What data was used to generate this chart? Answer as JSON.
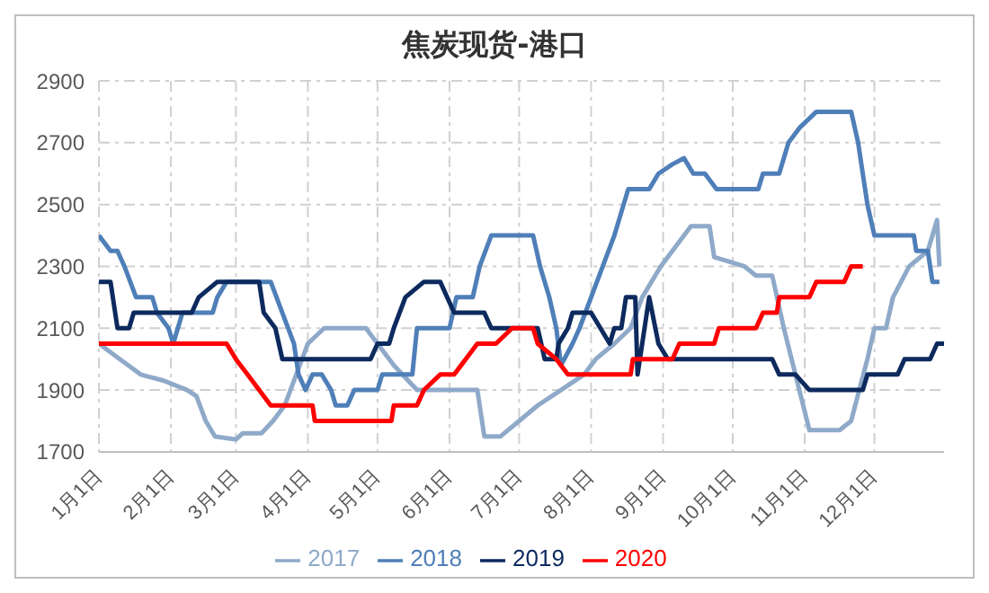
{
  "chart_data": {
    "type": "line",
    "title": "焦炭现货-港口",
    "xlim": [
      "--01-01",
      "--12-31"
    ],
    "xticks": [
      {
        "value": "--01-01",
        "label": "1月1日"
      },
      {
        "value": "--02-01",
        "label": "2月1日"
      },
      {
        "value": "--03-01",
        "label": "3月1日"
      },
      {
        "value": "--04-01",
        "label": "4月1日"
      },
      {
        "value": "--05-01",
        "label": "5月1日"
      },
      {
        "value": "--06-01",
        "label": "6月1日"
      },
      {
        "value": "--07-01",
        "label": "7月1日"
      },
      {
        "value": "--08-01",
        "label": "8月1日"
      },
      {
        "value": "--09-01",
        "label": "9月1日"
      },
      {
        "value": "--10-01",
        "label": "10月1日"
      },
      {
        "value": "--11-01",
        "label": "11月1日"
      },
      {
        "value": "--12-01",
        "label": "12月1日"
      }
    ],
    "ylim": [
      1700,
      2900
    ],
    "yticks": [
      1700,
      1900,
      2100,
      2300,
      2500,
      2700,
      2900
    ],
    "grid": true,
    "legend": "bottom",
    "line_style": "solid",
    "marker": "none",
    "series": [
      {
        "name": "2017",
        "color": "#8fa9c9",
        "x": [
          "--01-01",
          "--01-10",
          "--01-19",
          "--01-29",
          "--02-08",
          "--02-12",
          "--02-16",
          "--02-20",
          "--03-01",
          "--03-04",
          "--03-12",
          "--03-17",
          "--03-22",
          "--03-27",
          "--04-01",
          "--04-08",
          "--04-26",
          "--05-01",
          "--05-08",
          "--05-18",
          "--06-13",
          "--06-16",
          "--06-23",
          "--07-01",
          "--07-09",
          "--07-19",
          "--07-29",
          "--08-03",
          "--08-11",
          "--08-18",
          "--08-23",
          "--08-31",
          "--09-05",
          "--09-13",
          "--09-21",
          "--09-23",
          "--10-06",
          "--10-11",
          "--10-18",
          "--10-23",
          "--10-28",
          "--11-02",
          "--11-03",
          "--11-16",
          "--11-21",
          "--11-28",
          "--12-01",
          "--12-06",
          "--12-09",
          "--12-16",
          "--12-24",
          "--12-28",
          "--12-29"
        ],
        "values": [
          2050,
          2000,
          1950,
          1930,
          1900,
          1880,
          1800,
          1750,
          1740,
          1760,
          1760,
          1800,
          1850,
          1950,
          2050,
          2100,
          2100,
          2050,
          1980,
          1900,
          1900,
          1750,
          1750,
          1800,
          1850,
          1900,
          1950,
          2000,
          2050,
          2100,
          2200,
          2300,
          2350,
          2430,
          2430,
          2330,
          2300,
          2270,
          2270,
          2100,
          1950,
          1800,
          1770,
          1770,
          1800,
          2000,
          2100,
          2100,
          2200,
          2300,
          2350,
          2450,
          2300
        ]
      },
      {
        "name": "2018",
        "color": "#4f7fb8",
        "x": [
          "--01-01",
          "--01-06",
          "--01-09",
          "--01-12",
          "--01-17",
          "--01-24",
          "--01-26",
          "--01-31",
          "--02-02",
          "--02-06",
          "--02-19",
          "--02-21",
          "--02-25",
          "--03-16",
          "--03-21",
          "--03-26",
          "--03-28",
          "--03-31",
          "--04-03",
          "--04-07",
          "--04-11",
          "--04-13",
          "--04-18",
          "--04-21",
          "--05-01",
          "--05-03",
          "--05-16",
          "--05-18",
          "--06-01",
          "--06-04",
          "--06-11",
          "--06-14",
          "--06-19",
          "--07-07",
          "--07-10",
          "--07-14",
          "--07-17",
          "--07-19",
          "--07-24",
          "--07-27",
          "--08-01",
          "--08-06",
          "--08-11",
          "--08-15",
          "--08-17",
          "--08-26",
          "--08-30",
          "--09-05",
          "--09-10",
          "--09-14",
          "--09-19",
          "--09-24",
          "--10-12",
          "--10-14",
          "--10-21",
          "--10-25",
          "--10-30",
          "--11-06",
          "--11-21",
          "--11-24",
          "--11-28",
          "--12-01",
          "--12-18",
          "--12-19",
          "--12-24",
          "--12-26",
          "--12-29"
        ],
        "values": [
          2400,
          2350,
          2350,
          2300,
          2200,
          2200,
          2150,
          2100,
          2050,
          2150,
          2150,
          2200,
          2250,
          2250,
          2150,
          2050,
          1950,
          1900,
          1950,
          1950,
          1900,
          1850,
          1850,
          1900,
          1900,
          1950,
          1950,
          2100,
          2100,
          2200,
          2200,
          2300,
          2400,
          2400,
          2300,
          2200,
          2100,
          1980,
          2050,
          2100,
          2200,
          2300,
          2400,
          2500,
          2550,
          2550,
          2600,
          2630,
          2650,
          2600,
          2600,
          2550,
          2550,
          2600,
          2600,
          2700,
          2750,
          2800,
          2800,
          2700,
          2500,
          2400,
          2400,
          2350,
          2350,
          2250,
          2250
        ]
      },
      {
        "name": "2019",
        "color": "#0d2a5e",
        "x": [
          "--01-01",
          "--01-06",
          "--01-09",
          "--01-14",
          "--01-16",
          "--02-10",
          "--02-13",
          "--02-21",
          "--03-11",
          "--03-13",
          "--03-18",
          "--03-21",
          "--04-28",
          "--05-01",
          "--05-06",
          "--05-08",
          "--05-13",
          "--05-21",
          "--05-28",
          "--06-03",
          "--06-16",
          "--06-19",
          "--07-09",
          "--07-12",
          "--07-17",
          "--07-18",
          "--07-22",
          "--07-24",
          "--08-01",
          "--08-05",
          "--08-09",
          "--08-11",
          "--08-14",
          "--08-16",
          "--08-20",
          "--08-21",
          "--08-26",
          "--08-30",
          "--09-03",
          "--10-18",
          "--10-21",
          "--10-28",
          "--11-03",
          "--11-26",
          "--11-28",
          "--12-11",
          "--12-14",
          "--12-25",
          "--12-28",
          "--12-31"
        ],
        "values": [
          2250,
          2250,
          2100,
          2100,
          2150,
          2150,
          2200,
          2250,
          2250,
          2150,
          2100,
          2000,
          2000,
          2050,
          2050,
          2100,
          2200,
          2250,
          2250,
          2150,
          2150,
          2100,
          2100,
          2000,
          2000,
          2050,
          2100,
          2150,
          2150,
          2100,
          2050,
          2100,
          2100,
          2200,
          2200,
          1950,
          2200,
          2050,
          2000,
          2000,
          1950,
          1950,
          1900,
          1900,
          1950,
          1950,
          2000,
          2000,
          2050,
          2050
        ]
      },
      {
        "name": "2020",
        "color": "#ff0000",
        "x": [
          "--01-01",
          "--02-25",
          "--03-01",
          "--03-06",
          "--03-11",
          "--03-16",
          "--04-03",
          "--04-04",
          "--05-07",
          "--05-08",
          "--05-18",
          "--05-21",
          "--05-28",
          "--06-03",
          "--06-08",
          "--06-13",
          "--06-21",
          "--06-28",
          "--07-07",
          "--07-09",
          "--07-17",
          "--07-22",
          "--08-18",
          "--08-19",
          "--09-05",
          "--09-08",
          "--09-23",
          "--09-25",
          "--10-11",
          "--10-14",
          "--10-20",
          "--10-21",
          "--11-03",
          "--11-06",
          "--11-18",
          "--11-21",
          "--11-26"
        ],
        "values": [
          2050,
          2050,
          2000,
          1950,
          1900,
          1850,
          1850,
          1800,
          1800,
          1850,
          1850,
          1900,
          1950,
          1950,
          2000,
          2050,
          2050,
          2100,
          2100,
          2050,
          2000,
          1950,
          1950,
          2000,
          2000,
          2050,
          2050,
          2100,
          2100,
          2150,
          2150,
          2200,
          2200,
          2250,
          2250,
          2300,
          2300
        ]
      }
    ]
  }
}
